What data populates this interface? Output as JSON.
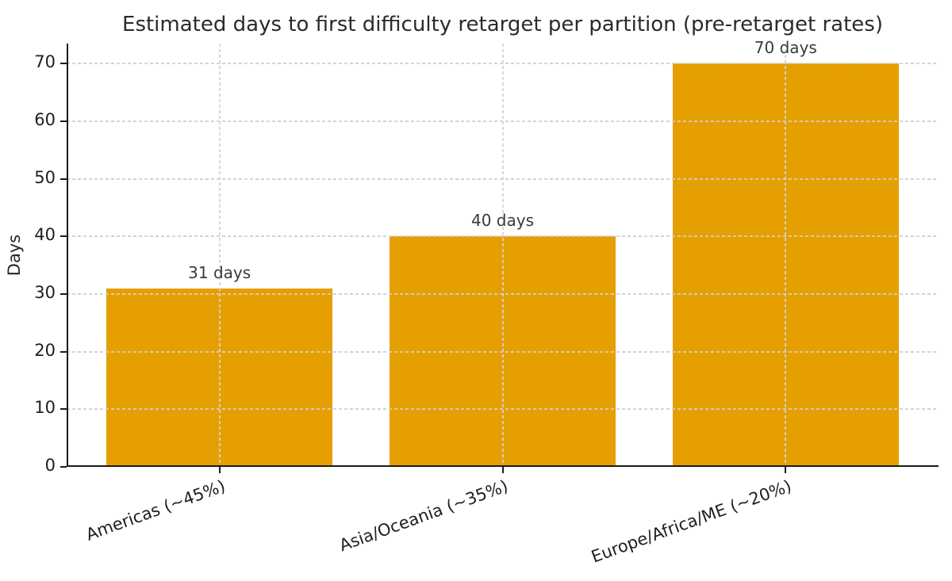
{
  "chart_data": {
    "type": "bar",
    "title": "Estimated days to first difficulty retarget per partition (pre-retarget rates)",
    "ylabel": "Days",
    "xlabel": "",
    "categories": [
      "Americas (~45%)",
      "Asia/Oceania (~35%)",
      "Europe/Africa/ME (~20%)"
    ],
    "values": [
      31,
      40,
      70
    ],
    "bar_labels": [
      "31 days",
      "40 days",
      "70 days"
    ],
    "yticks": [
      0,
      10,
      20,
      30,
      40,
      50,
      60,
      70
    ],
    "ylim": [
      0,
      73.5
    ],
    "bar_width_fraction": 0.8,
    "x_tick_rotation_deg": 20,
    "grid": "dashed, drawn over bars",
    "legend": "none",
    "colors": {
      "bar": "#E69F00",
      "grid": "#cfcfcf",
      "spine": "#1a1a1a",
      "text": "#262626"
    }
  }
}
